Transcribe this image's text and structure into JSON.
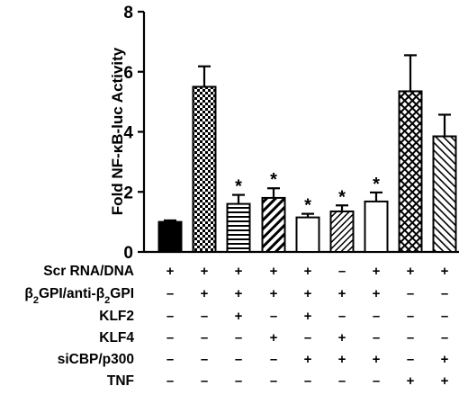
{
  "chart_data": {
    "type": "bar",
    "ylabel": "Fold NF-κB-luc Activity",
    "ylim": [
      0,
      8
    ],
    "yticks": [
      "0",
      "2",
      "4",
      "6",
      "8"
    ],
    "grid": false,
    "values": [
      1.0,
      5.5,
      1.6,
      1.8,
      1.15,
      1.35,
      1.68,
      5.35,
      3.85
    ],
    "errors": [
      0.05,
      0.68,
      0.3,
      0.32,
      0.12,
      0.2,
      0.3,
      1.2,
      0.72
    ],
    "significance": [
      "",
      "",
      "*",
      "*",
      "*",
      "*",
      "*",
      "",
      ""
    ],
    "patterns": [
      "solid",
      "checker",
      "hlines",
      "diag-wide",
      "open",
      "diag-fine",
      "open",
      "crosshatch",
      "diag-down"
    ],
    "condition_rows": [
      {
        "label": "Scr RNA/DNA",
        "marks": [
          "+",
          "+",
          "+",
          "+",
          "+",
          "–",
          "+",
          "+",
          "+"
        ]
      },
      {
        "label": "β2GPI/anti-β2GPI",
        "marks": [
          "–",
          "+",
          "+",
          "+",
          "+",
          "+",
          "+",
          "–",
          "–"
        ]
      },
      {
        "label": "KLF2",
        "marks": [
          "–",
          "–",
          "+",
          "–",
          "+",
          "–",
          "–",
          "–",
          "–"
        ]
      },
      {
        "label": "KLF4",
        "marks": [
          "–",
          "–",
          "–",
          "+",
          "–",
          "+",
          "–",
          "–",
          "–"
        ]
      },
      {
        "label": "siCBP/p300",
        "marks": [
          "–",
          "–",
          "–",
          "–",
          "+",
          "+",
          "+",
          "–",
          "+"
        ]
      },
      {
        "label": "TNF",
        "marks": [
          "–",
          "–",
          "–",
          "–",
          "–",
          "–",
          "–",
          "+",
          "+"
        ]
      }
    ]
  }
}
